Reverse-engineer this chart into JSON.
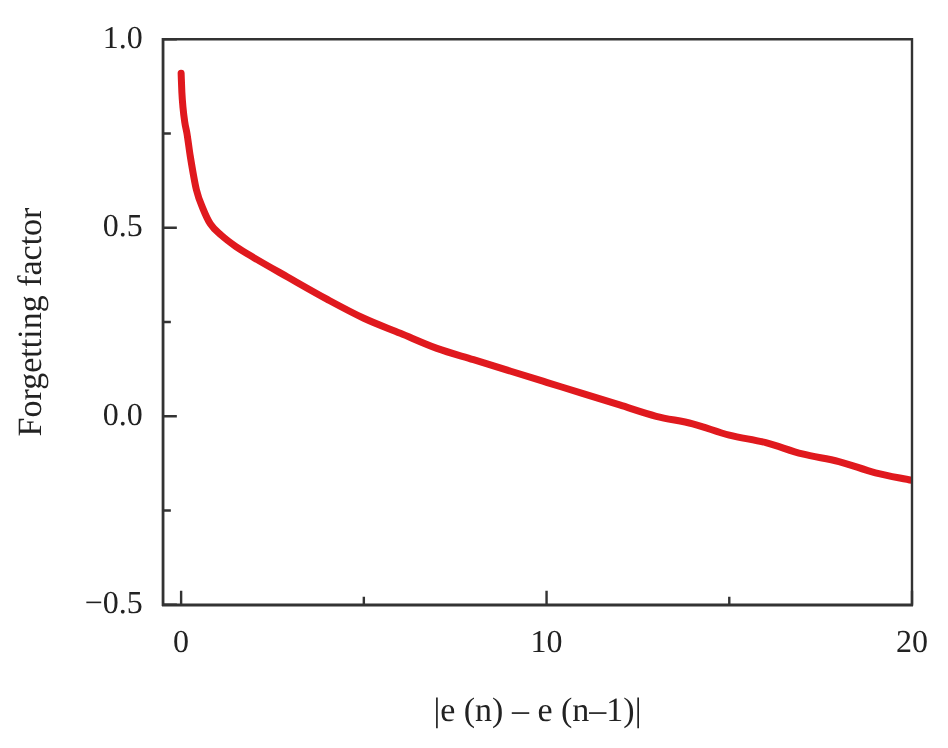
{
  "chart_data": {
    "type": "line",
    "xlabel": "|e (n) – e (n–1)|",
    "ylabel": "Forgetting factor",
    "x": [
      0,
      0.02,
      0.05,
      0.1,
      0.16,
      0.25,
      0.42,
      0.6,
      0.8,
      1.1,
      1.5,
      2,
      2.9,
      4,
      5,
      6,
      7,
      8,
      9,
      10,
      11,
      12,
      13,
      14,
      15,
      16,
      17,
      18,
      19,
      20
    ],
    "series": [
      {
        "color": "#e0191e",
        "values": [
          0.91,
          0.86,
          0.82,
          0.78,
          0.75,
          0.69,
          0.6,
          0.55,
          0.51,
          0.48,
          0.45,
          0.42,
          0.37,
          0.31,
          0.26,
          0.22,
          0.18,
          0.15,
          0.12,
          0.09,
          0.06,
          0.03,
          0.0,
          -0.02,
          -0.05,
          -0.07,
          -0.1,
          -0.12,
          -0.15,
          -0.17
        ]
      }
    ],
    "xlim": [
      -0.5,
      20
    ],
    "ylim": [
      -0.5,
      1.0
    ],
    "xticks": [
      0,
      {
        "value": 5,
        "label": null
      },
      10,
      {
        "value": 15,
        "label": null
      },
      20
    ],
    "yticks": [
      {
        "value": -0.5,
        "label": "−0.5"
      },
      {
        "value": -0.25,
        "label": null
      },
      {
        "value": 0,
        "label": "0.0"
      },
      {
        "value": 0.25,
        "label": null
      },
      {
        "value": 0.5,
        "label": "0.5"
      },
      {
        "value": 0.75,
        "label": null
      },
      {
        "value": 1,
        "label": "1.0"
      }
    ],
    "grid": false,
    "legend": false,
    "marker": "none",
    "line_style": "solid"
  }
}
